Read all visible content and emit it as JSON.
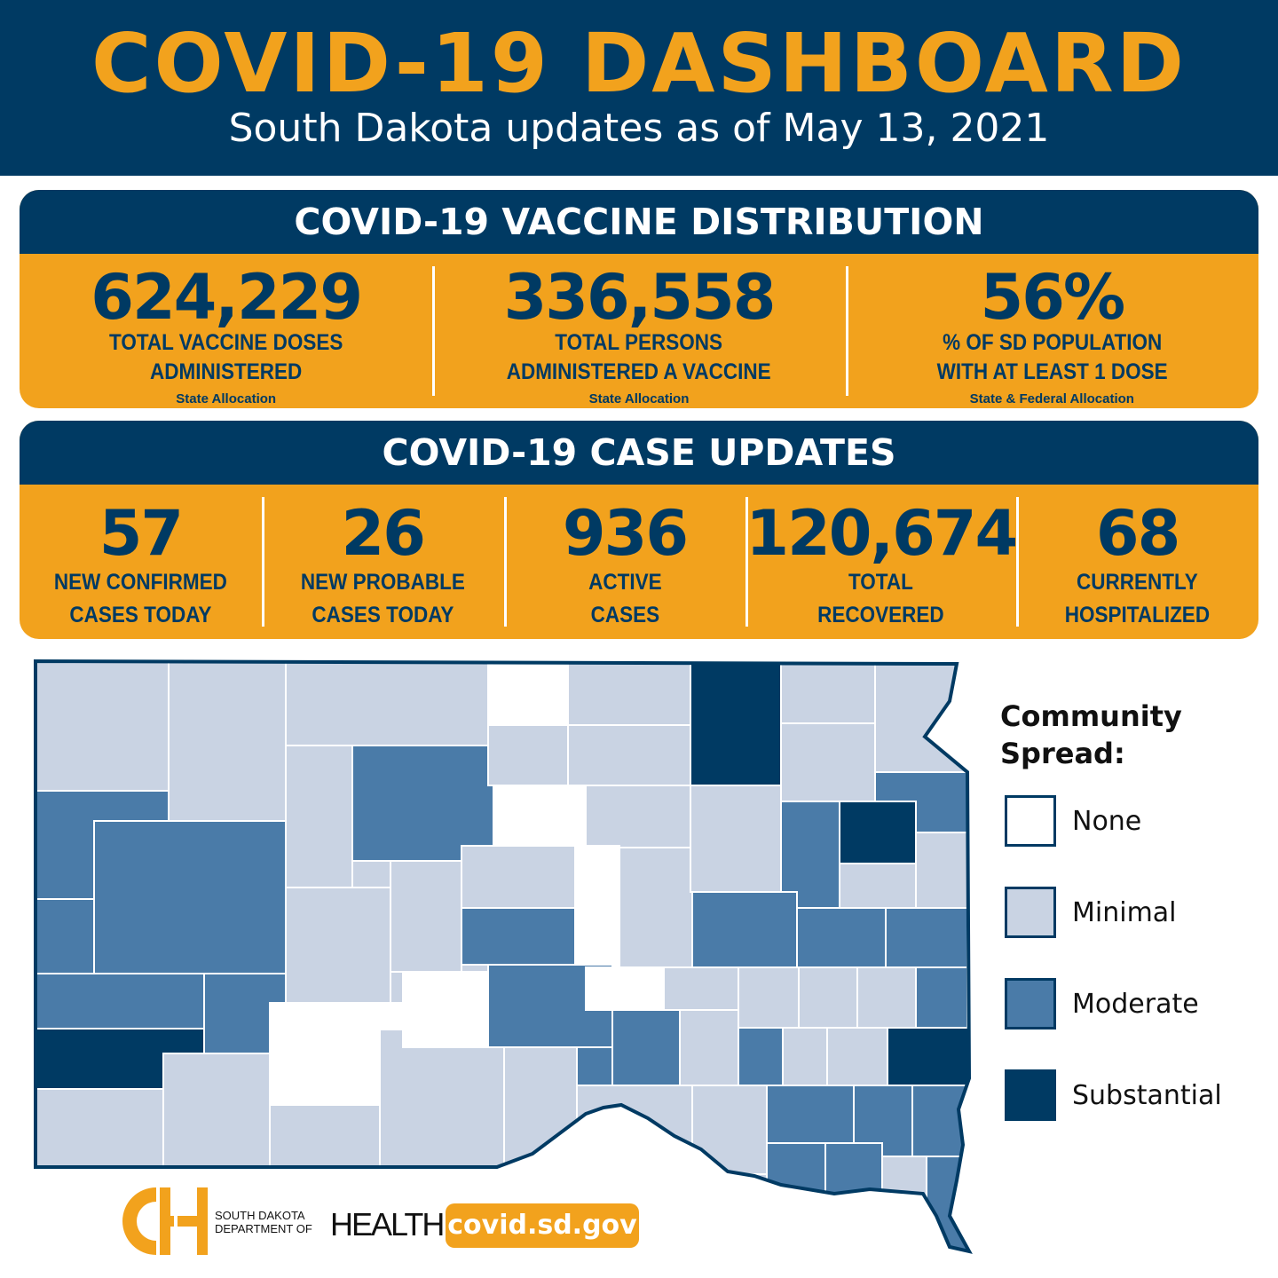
{
  "header": {
    "title": "COVID-19 DASHBOARD",
    "subtitle": "South Dakota updates as of May 13, 2021"
  },
  "vaccine": {
    "heading": "COVID-19 VACCINE DISTRIBUTION",
    "stats": [
      {
        "value": "624,229",
        "label1": "TOTAL VACCINE DOSES",
        "label2": "ADMINISTERED",
        "note": "State Allocation"
      },
      {
        "value": "336,558",
        "label1": "TOTAL PERSONS",
        "label2": "ADMINISTERED A VACCINE",
        "note": "State Allocation"
      },
      {
        "value": "56%",
        "label1": "% OF SD POPULATION",
        "label2": "WITH AT LEAST 1 DOSE",
        "note": "State & Federal Allocation"
      }
    ]
  },
  "cases": {
    "heading": "COVID-19 CASE UPDATES",
    "stats": [
      {
        "value": "57",
        "label1": "NEW CONFIRMED",
        "label2": "CASES TODAY"
      },
      {
        "value": "26",
        "label1": "NEW PROBABLE",
        "label2": "CASES TODAY"
      },
      {
        "value": "936",
        "label1": "ACTIVE",
        "label2": "CASES"
      },
      {
        "value": "120,674",
        "label1": "TOTAL",
        "label2": "RECOVERED"
      },
      {
        "value": "68",
        "label1": "CURRENTLY",
        "label2": "HOSPITALIZED"
      }
    ]
  },
  "legend": {
    "title_line1": "Community",
    "title_line2": "Spread:",
    "items": [
      {
        "label": "None",
        "color": "#ffffff"
      },
      {
        "label": "Minimal",
        "color": "#c9d3e3"
      },
      {
        "label": "Moderate",
        "color": "#4a7ba8"
      },
      {
        "label": "Substantial",
        "color": "#003a63"
      }
    ]
  },
  "colors": {
    "navy": "#003a63",
    "orange": "#f2a21d",
    "none": "#ffffff",
    "minimal": "#c9d3e3",
    "moderate": "#4a7ba8",
    "substantial": "#003a63"
  },
  "footer": {
    "dept_line1": "SOUTH DAKOTA",
    "dept_line2": "DEPARTMENT OF",
    "dept_line3": "HEALTH",
    "website": "covid.sd.gov"
  }
}
